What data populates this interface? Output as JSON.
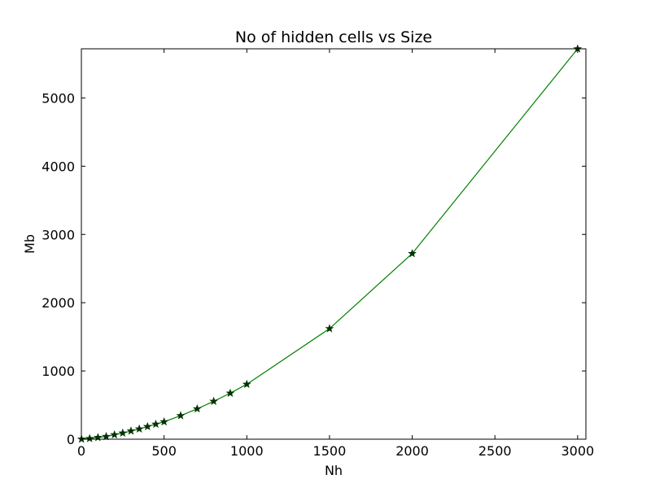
{
  "chart_data": {
    "type": "line",
    "title": "No of hidden cells vs Size",
    "xlabel": "Nh",
    "ylabel": "Mb",
    "xlim": [
      0,
      3050
    ],
    "ylim": [
      0,
      5720
    ],
    "xticks": [
      0,
      500,
      1000,
      1500,
      2000,
      2500,
      3000
    ],
    "yticks": [
      0,
      1000,
      2000,
      3000,
      4000,
      5000
    ],
    "grid": false,
    "series": [
      {
        "marker": "star",
        "color": "#008000",
        "marker_color": "#003300",
        "x": [
          1,
          50,
          100,
          150,
          200,
          250,
          300,
          350,
          400,
          450,
          500,
          600,
          700,
          800,
          900,
          1000,
          1500,
          2000,
          3000
        ],
        "y": [
          1,
          10,
          25,
          40,
          65,
          90,
          120,
          150,
          185,
          220,
          255,
          345,
          445,
          555,
          675,
          805,
          1620,
          2720,
          5720
        ]
      }
    ]
  }
}
